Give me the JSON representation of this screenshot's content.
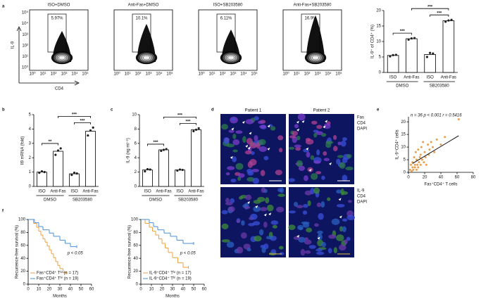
{
  "figure": {
    "panel_labels": [
      "a",
      "b",
      "c",
      "d",
      "e",
      "f"
    ],
    "flow": {
      "titles": [
        "ISO+DMSO",
        "Anti-Fas+DMSO",
        "ISO+SB203580",
        "Anti-Fas+SB203580"
      ],
      "gates": [
        "5.97%",
        "10.1%",
        "6.11%",
        "16.9%"
      ],
      "y_label": "IL-9",
      "x_label": "CD4",
      "tick_labels": [
        "10⁰",
        "10¹",
        "10²",
        "10³",
        "10⁴",
        "10⁵"
      ]
    },
    "micrographs": {
      "columns": [
        "Patient 1",
        "Patient 2"
      ],
      "legends": [
        [
          "Fas",
          "CD4",
          "DAPI"
        ],
        [
          "IL-9",
          "CD4",
          "DAPI"
        ]
      ],
      "legend_colors": [
        "#33cc33",
        "#ee3333",
        "#6666ff"
      ]
    }
  },
  "chart_data": [
    {
      "type": "bar",
      "ylabel": "IL-9⁺ of CD4⁺ (%)",
      "categories": [
        "ISO",
        "Anti-Fas",
        "ISO",
        "Anti-Fas"
      ],
      "groups": [
        "DMSO",
        "SB203580"
      ],
      "values": [
        5.5,
        10.9,
        5.8,
        16.7
      ],
      "points": [
        [
          5.2,
          5.6,
          5.7
        ],
        [
          10.6,
          11.0,
          11.1
        ],
        [
          5.0,
          6.3,
          6.1
        ],
        [
          16.4,
          16.8,
          17.0
        ]
      ],
      "annotations": [
        "***",
        "***",
        "***"
      ],
      "ylim": [
        0,
        20
      ],
      "yticks": [
        0,
        5,
        10,
        15,
        20
      ],
      "color": "#ffffff"
    },
    {
      "type": "bar",
      "ylabel": "Il9 mRNA (fold)",
      "categories": [
        "ISO",
        "Anti-Fas",
        "ISO",
        "Anti-Fas"
      ],
      "groups": [
        "DMSO",
        "SB203580"
      ],
      "values": [
        1.0,
        2.45,
        0.88,
        3.85
      ],
      "points": [
        [
          0.95,
          1.05,
          1.0
        ],
        [
          2.2,
          2.5,
          2.65
        ],
        [
          0.8,
          0.95,
          0.9
        ],
        [
          3.55,
          3.9,
          4.1
        ]
      ],
      "annotations": [
        "**",
        "***",
        "***"
      ],
      "ylim": [
        0,
        5
      ],
      "yticks": [
        0,
        1,
        2,
        3,
        4,
        5
      ],
      "color": "#ffffff"
    },
    {
      "type": "bar",
      "ylabel": "IL-9 (ng ml⁻¹)",
      "categories": [
        "ISO",
        "Anti-Fas",
        "ISO",
        "Anti-Fas"
      ],
      "groups": [
        "DMSO",
        "SB203580"
      ],
      "values": [
        2.3,
        5.1,
        2.3,
        7.9
      ],
      "points": [
        [
          2.1,
          2.4,
          2.35
        ],
        [
          4.95,
          5.1,
          5.2
        ],
        [
          2.2,
          2.35,
          2.3
        ],
        [
          7.7,
          7.9,
          8.1
        ]
      ],
      "annotations": [
        "***",
        "***",
        "***"
      ],
      "ylim": [
        0,
        10
      ],
      "yticks": [
        0,
        2,
        4,
        6,
        8,
        10
      ],
      "color": "#ffffff"
    },
    {
      "type": "scatter",
      "xlabel": "Fas⁺CD4⁺ T cells",
      "ylabel": "IL-9⁺CD4⁺ cells",
      "annotation": "n = 36  p < 0.001  r = 0.5416",
      "x": [
        2,
        3,
        4,
        5,
        5,
        6,
        7,
        8,
        8,
        9,
        10,
        10,
        11,
        12,
        12,
        13,
        14,
        15,
        15,
        16,
        17,
        18,
        19,
        20,
        21,
        22,
        24,
        25,
        26,
        28,
        30,
        32,
        35,
        40,
        45,
        62
      ],
      "values": [
        1,
        3,
        0.5,
        2,
        4,
        1,
        6,
        2,
        3,
        8,
        1,
        5,
        3,
        9,
        2,
        4,
        6,
        7,
        3,
        10,
        5,
        12,
        4,
        8,
        6,
        3,
        11,
        7,
        9,
        12,
        10,
        8,
        13,
        11,
        14,
        21
      ],
      "color": "#e8a050",
      "trendline": {
        "x": [
          5,
          62
        ],
        "values": [
          3.5,
          14.5
        ]
      },
      "xlim": [
        0,
        80
      ],
      "xticks": [
        0,
        20,
        40,
        60,
        80
      ],
      "ylim": [
        0,
        22
      ],
      "yticks": [
        0,
        5,
        10,
        15,
        20
      ]
    },
    {
      "type": "step",
      "ylabel": "Recurrence-free survival (%)",
      "xlabel": "Months",
      "annotation": "p < 0.05",
      "legend": "lower left",
      "xlim": [
        0,
        60
      ],
      "xticks": [
        0,
        10,
        20,
        30,
        40,
        50,
        60
      ],
      "ylim": [
        0,
        100
      ],
      "yticks": [
        0,
        20,
        40,
        60,
        80,
        100
      ],
      "series": [
        {
          "name": "Fas⁺CD4⁺ Tˡᵒ (n = 17)",
          "color": "#f0a040",
          "x": [
            0,
            5,
            8,
            10,
            12,
            14,
            16,
            18,
            20,
            22,
            24,
            26,
            28,
            30,
            33,
            36
          ],
          "values": [
            100,
            94,
            88,
            82,
            76,
            70,
            65,
            59,
            53,
            47,
            41,
            35,
            29,
            24,
            18,
            18
          ]
        },
        {
          "name": "Fas⁺CD4⁺ Tʰⁱ (n = 19)",
          "color": "#4a90d9",
          "x": [
            0,
            6,
            10,
            14,
            20,
            24,
            30,
            35,
            40,
            46
          ],
          "values": [
            100,
            95,
            89,
            84,
            79,
            74,
            68,
            63,
            58,
            58
          ]
        }
      ]
    },
    {
      "type": "step",
      "ylabel": "Recurrence-free survival (%)",
      "xlabel": "Months",
      "annotation": "p < 0.05",
      "legend": "lower left",
      "xlim": [
        0,
        60
      ],
      "xticks": [
        0,
        10,
        20,
        30,
        40,
        50,
        60
      ],
      "ylim": [
        0,
        100
      ],
      "yticks": [
        0,
        20,
        40,
        60,
        80,
        100
      ],
      "series": [
        {
          "name": "IL-9⁺CD4⁺ Tˡᵒ (n = 17)",
          "color": "#f0a040",
          "x": [
            0,
            4,
            8,
            11,
            14,
            17,
            20,
            23,
            26,
            30,
            35,
            40,
            45
          ],
          "values": [
            100,
            94,
            88,
            82,
            76,
            70,
            63,
            56,
            49,
            41,
            33,
            26,
            26
          ]
        },
        {
          "name": "IL-9⁺CD4⁺ Tʰⁱ (n = 19)",
          "color": "#4a90d9",
          "x": [
            0,
            8,
            12,
            16,
            22,
            28,
            34,
            40,
            50
          ],
          "values": [
            100,
            95,
            89,
            84,
            79,
            74,
            68,
            63,
            63
          ]
        }
      ]
    }
  ]
}
